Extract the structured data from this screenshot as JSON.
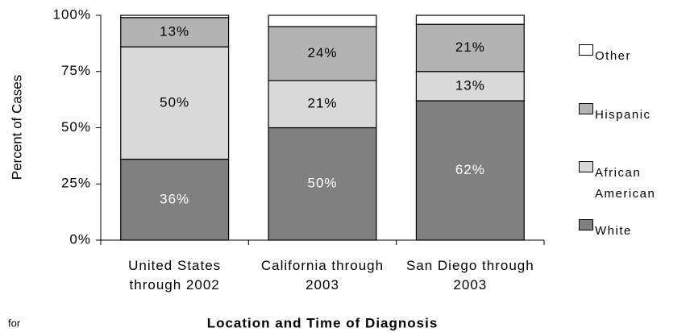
{
  "chart_data": {
    "type": "stacked_bar",
    "x_label": "Location and Time of Diagnosis",
    "y_label": "Percent of Cases",
    "annotation": "for",
    "categories": [
      "United States through 2002",
      "California through 2003",
      "San Diego through 2003"
    ],
    "series": [
      {
        "name": "White",
        "color": "#808080",
        "values": [
          36,
          50,
          62
        ],
        "value_labels": [
          "36%",
          "50%",
          "62%"
        ]
      },
      {
        "name": "African American",
        "color": "#d9d9d9",
        "values": [
          50,
          21,
          13
        ],
        "value_labels": [
          "50%",
          "21%",
          "13%"
        ]
      },
      {
        "name": "Hispanic",
        "color": "#b3b3b3",
        "values": [
          13,
          24,
          21
        ],
        "value_labels": [
          "13%",
          "24%",
          "21%"
        ]
      },
      {
        "name": "Other",
        "color": "#ffffff",
        "values": [
          1,
          5,
          4
        ]
      }
    ],
    "ylim": [
      0,
      100
    ],
    "yticks": [
      {
        "value": 0,
        "label": "0%"
      },
      {
        "value": 25,
        "label": "25%"
      },
      {
        "value": 50,
        "label": "50%"
      },
      {
        "value": 75,
        "label": "75%"
      },
      {
        "value": 100,
        "label": "100%"
      }
    ],
    "grid": false
  }
}
